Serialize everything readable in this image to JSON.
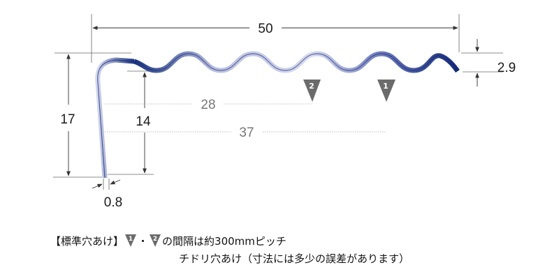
{
  "dimensions": {
    "width_total": "50",
    "wave_height": "2.9",
    "height_outer": "17",
    "height_inner": "14",
    "thickness": "0.8",
    "hole_distance_2": "28",
    "hole_distance_1": "37"
  },
  "markers": [
    {
      "label": "2"
    },
    {
      "label": "1"
    }
  ],
  "note": {
    "line1_prefix": "【標準穴あけ】",
    "marker_a": "1",
    "separator": "・",
    "marker_b": "2",
    "line1_suffix": "の間隔は約300mmピッチ",
    "line2": "チドリ穴あけ（寸法には多少の誤差があります）"
  },
  "colors": {
    "profile_dark": "#17307e",
    "profile_light": "#c8cde6",
    "marker_fill": "#6b6b6b",
    "line_color": "#555555",
    "dash_color": "#aaaaaa"
  }
}
